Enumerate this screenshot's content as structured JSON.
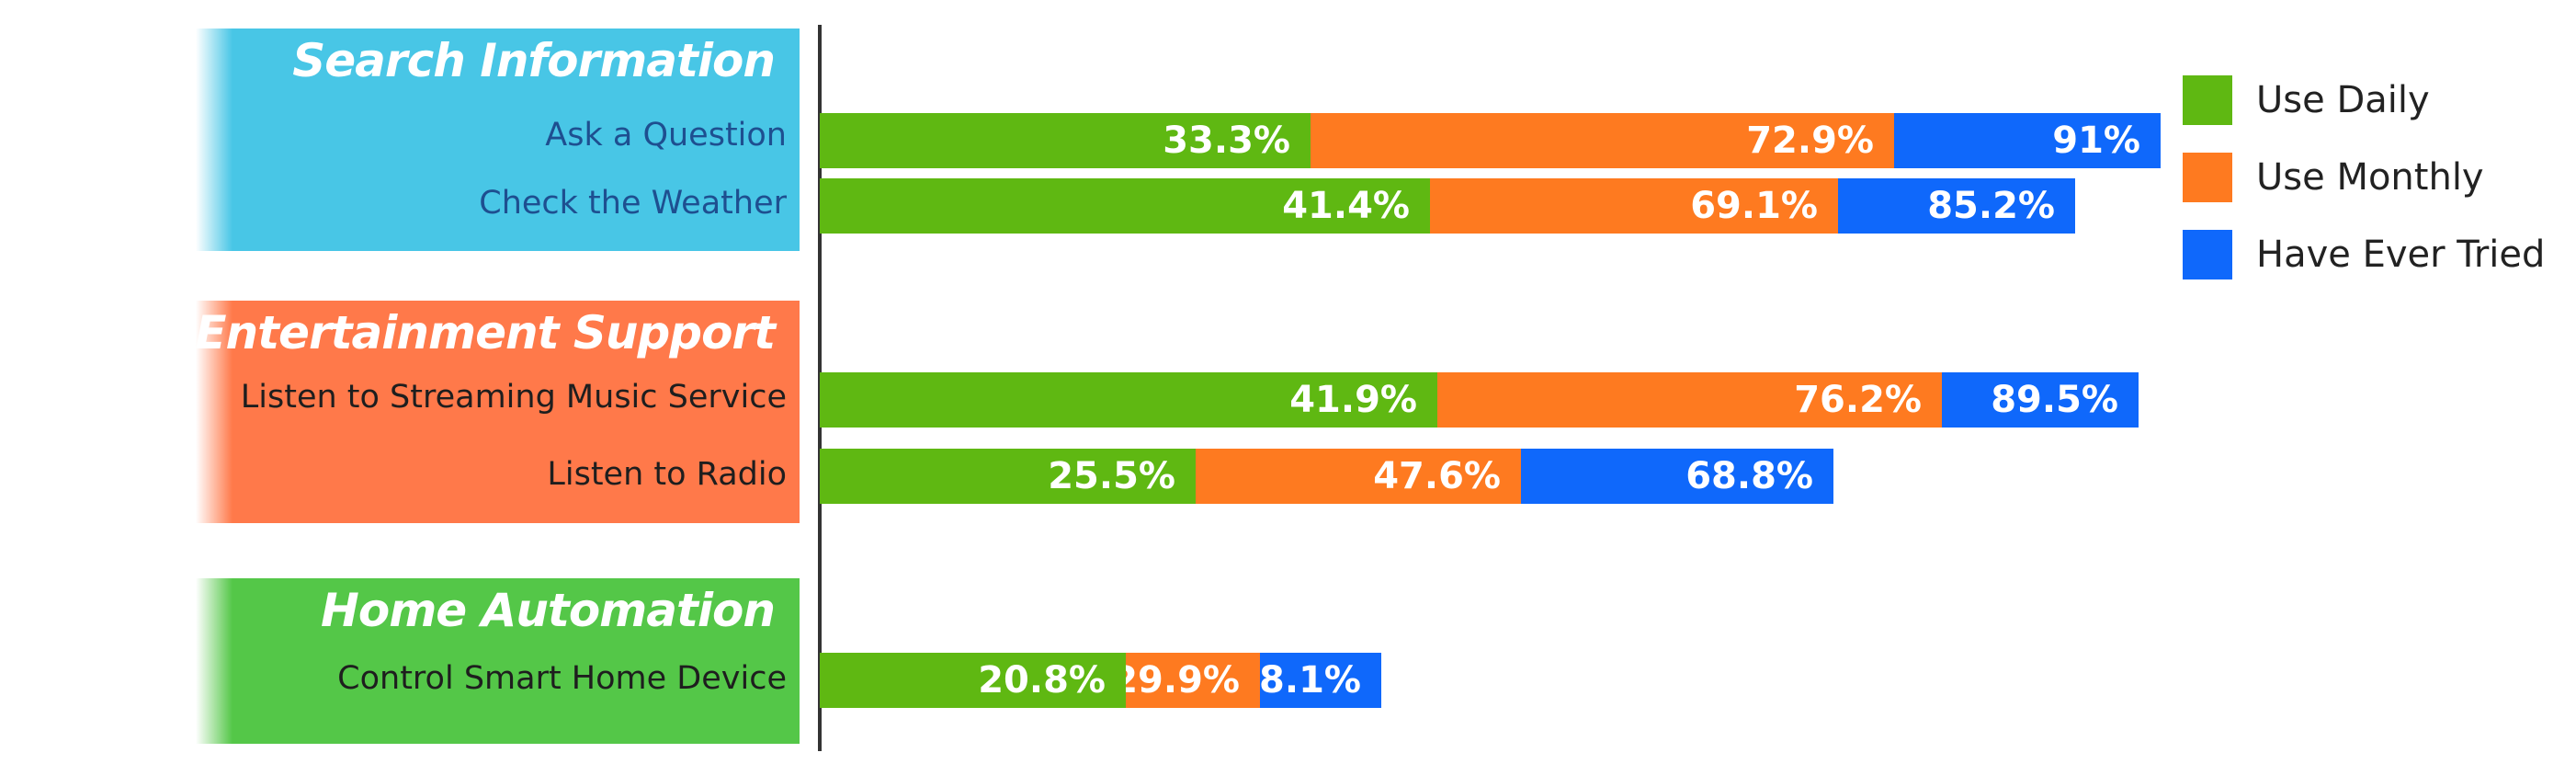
{
  "chart_data": {
    "type": "bar",
    "orientation": "horizontal",
    "stacked": "overlapping",
    "groups": [
      {
        "title": "Search Information",
        "color": "#48c6e6",
        "rows": [
          "Ask a Question",
          "Check the Weather"
        ]
      },
      {
        "title": "Entertainment Support",
        "color": "#ff794a",
        "rows": [
          "Listen to Streaming Music Service",
          "Listen to Radio"
        ]
      },
      {
        "title": "Home Automation",
        "color": "#54c748",
        "rows": [
          "Control Smart Home Device"
        ]
      }
    ],
    "categories": [
      "Ask a Question",
      "Check the Weather",
      "Listen to Streaming Music Service",
      "Listen to Radio",
      "Control Smart Home Device"
    ],
    "series": [
      {
        "name": "Have Ever Tried",
        "color": "#0f68fb",
        "values": [
          91,
          85.2,
          89.5,
          68.8,
          38.1
        ],
        "labels": [
          "91%",
          "85.2%",
          "89.5%",
          "68.8%",
          "38.1%"
        ]
      },
      {
        "name": "Use Monthly",
        "color": "#fe7a20",
        "values": [
          72.9,
          69.1,
          76.2,
          47.6,
          29.9
        ],
        "labels": [
          "72.9%",
          "69.1%",
          "76.2%",
          "47.6%",
          "29.9%"
        ]
      },
      {
        "name": "Use Daily",
        "color": "#5fb812",
        "values": [
          33.3,
          41.4,
          41.9,
          25.5,
          20.8
        ],
        "labels": [
          "33.3%",
          "41.4%",
          "41.9%",
          "25.5%",
          "20.8%"
        ]
      }
    ],
    "legend": {
      "position": "top-right",
      "order": [
        "Use Daily",
        "Use Monthly",
        "Have Ever Tried"
      ]
    },
    "grid": false
  }
}
